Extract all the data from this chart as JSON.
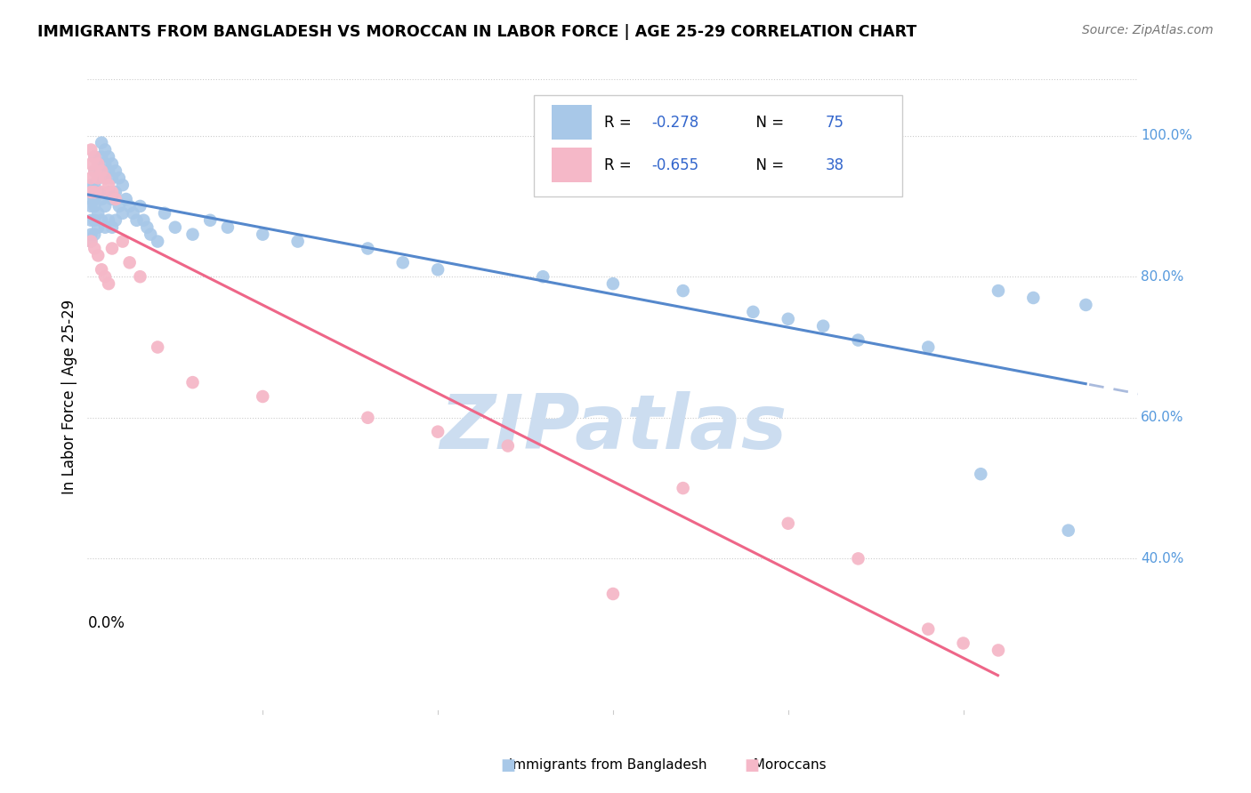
{
  "title": "IMMIGRANTS FROM BANGLADESH VS MOROCCAN IN LABOR FORCE | AGE 25-29 CORRELATION CHART",
  "source": "Source: ZipAtlas.com",
  "ylabel": "In Labor Force | Age 25-29",
  "xlim": [
    0.0,
    0.3
  ],
  "ylim": [
    0.18,
    1.08
  ],
  "blue_color": "#a8c8e8",
  "pink_color": "#f5b8c8",
  "blue_line_color": "#5588cc",
  "pink_line_color": "#ee6688",
  "blue_dash_color": "#aabbdd",
  "watermark_color": "#ccddf0",
  "right_tick_color": "#5599dd",
  "bd_x": [
    0.001,
    0.001,
    0.001,
    0.001,
    0.001,
    0.001,
    0.002,
    0.002,
    0.002,
    0.002,
    0.002,
    0.002,
    0.002,
    0.003,
    0.003,
    0.003,
    0.003,
    0.003,
    0.004,
    0.004,
    0.004,
    0.004,
    0.004,
    0.005,
    0.005,
    0.005,
    0.005,
    0.005,
    0.006,
    0.006,
    0.006,
    0.006,
    0.007,
    0.007,
    0.007,
    0.007,
    0.008,
    0.008,
    0.008,
    0.009,
    0.009,
    0.01,
    0.01,
    0.011,
    0.012,
    0.013,
    0.014,
    0.015,
    0.016,
    0.017,
    0.018,
    0.02,
    0.022,
    0.025,
    0.03,
    0.035,
    0.04,
    0.05,
    0.06,
    0.08,
    0.09,
    0.1,
    0.13,
    0.15,
    0.17,
    0.19,
    0.2,
    0.21,
    0.22,
    0.24,
    0.255,
    0.26,
    0.27,
    0.28,
    0.285
  ],
  "bd_y": [
    0.93,
    0.91,
    0.9,
    0.88,
    0.86,
    0.85,
    0.97,
    0.95,
    0.93,
    0.91,
    0.9,
    0.88,
    0.86,
    0.96,
    0.94,
    0.92,
    0.89,
    0.87,
    0.99,
    0.97,
    0.95,
    0.91,
    0.88,
    0.98,
    0.96,
    0.94,
    0.9,
    0.87,
    0.97,
    0.95,
    0.92,
    0.88,
    0.96,
    0.94,
    0.91,
    0.87,
    0.95,
    0.92,
    0.88,
    0.94,
    0.9,
    0.93,
    0.89,
    0.91,
    0.9,
    0.89,
    0.88,
    0.9,
    0.88,
    0.87,
    0.86,
    0.85,
    0.89,
    0.87,
    0.86,
    0.88,
    0.87,
    0.86,
    0.85,
    0.84,
    0.82,
    0.81,
    0.8,
    0.79,
    0.78,
    0.75,
    0.74,
    0.73,
    0.71,
    0.7,
    0.52,
    0.78,
    0.77,
    0.44,
    0.76
  ],
  "mc_x": [
    0.001,
    0.001,
    0.001,
    0.001,
    0.001,
    0.002,
    0.002,
    0.002,
    0.002,
    0.003,
    0.003,
    0.003,
    0.004,
    0.004,
    0.004,
    0.005,
    0.005,
    0.006,
    0.006,
    0.007,
    0.007,
    0.008,
    0.01,
    0.012,
    0.015,
    0.02,
    0.03,
    0.05,
    0.08,
    0.1,
    0.12,
    0.15,
    0.17,
    0.2,
    0.22,
    0.24,
    0.25,
    0.26
  ],
  "mc_y": [
    0.98,
    0.96,
    0.94,
    0.92,
    0.85,
    0.97,
    0.95,
    0.92,
    0.84,
    0.96,
    0.94,
    0.83,
    0.95,
    0.92,
    0.81,
    0.94,
    0.8,
    0.93,
    0.79,
    0.92,
    0.84,
    0.91,
    0.85,
    0.82,
    0.8,
    0.7,
    0.65,
    0.63,
    0.6,
    0.58,
    0.56,
    0.35,
    0.5,
    0.45,
    0.4,
    0.3,
    0.28,
    0.27
  ]
}
